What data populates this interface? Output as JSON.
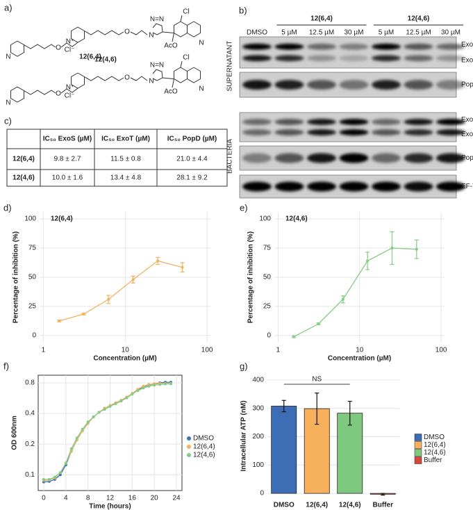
{
  "figure": {
    "a": {
      "label": "a)",
      "molecules": [
        {
          "name": "12(4,6)",
          "atoms": [
            "N",
            "N⁺",
            "Cl⁻",
            "O",
            "O",
            "N",
            "N=N",
            "Cl",
            "AcO",
            "N"
          ]
        },
        {
          "name": "12(6,4)",
          "atoms": [
            "N",
            "N⁺",
            "Cl⁻",
            "O",
            "O",
            "N",
            "N=N",
            "Cl",
            "AcO",
            "N"
          ]
        }
      ]
    },
    "b": {
      "label": "b)",
      "groups": [
        "12(6,4)",
        "12(4,6)"
      ],
      "lanes": [
        "DMSO",
        "5 µM",
        "12.5 µM",
        "30 µM",
        "5 µM",
        "12.5 µM",
        "30 µM"
      ],
      "fractions": [
        "SUPERNATANT",
        "BACTERIA"
      ],
      "bands": [
        [
          "ExoT",
          "ExoS"
        ],
        [
          "PopD"
        ],
        [
          "ExoT",
          "ExoS"
        ],
        [
          "PopD"
        ],
        [
          "EF-Tu"
        ]
      ]
    },
    "c": {
      "label": "c)",
      "table": {
        "header": [
          "IC₅₀ ExoS (µM)",
          "IC₅₀ ExoT (µM)",
          "IC₅₀ PopD (µM)"
        ],
        "rows": [
          {
            "name": "12(6,4)",
            "cells": [
              "9.8 ± 2.7",
              "11.5 ± 0.8",
              "21.0 ± 4.4"
            ]
          },
          {
            "name": "12(4,6)",
            "cells": [
              "10.0 ± 1.6",
              "13.4 ± 4.8",
              "28.1 ± 9.2"
            ]
          }
        ]
      }
    }
  },
  "chart_data": [
    {
      "type": "line",
      "label": "d)",
      "title": "12(6,4)",
      "xlabel": "Concentration (µM)",
      "ylabel": "Percentage of inhibition (%)",
      "xscale": "log",
      "x": [
        1.5625,
        3.125,
        6.25,
        12.5,
        25,
        50
      ],
      "series": [
        {
          "color": "#f2b25e",
          "values": [
            12.5,
            18.5,
            31,
            48,
            64,
            58.5
          ],
          "errors": [
            0.8,
            0.8,
            3.5,
            3,
            3,
            4
          ]
        }
      ],
      "xlim": [
        0.9,
        110
      ],
      "xticks": [
        1,
        10,
        100
      ],
      "ylim": [
        -6,
        106
      ],
      "yticks": [
        0,
        25,
        50,
        75,
        100
      ],
      "grid": true
    },
    {
      "type": "line",
      "label": "e)",
      "title": "12(4,6)",
      "xlabel": "Concentration (µM)",
      "ylabel": "Percentage of inhibition (%)",
      "xscale": "log",
      "x": [
        1.5625,
        3.125,
        6.25,
        12.5,
        25,
        50
      ],
      "series": [
        {
          "color": "#84cc84",
          "values": [
            -1,
            10,
            31,
            64,
            75,
            74
          ],
          "errors": [
            0.8,
            0.8,
            3,
            7.5,
            14,
            8
          ]
        }
      ],
      "xlim": [
        0.9,
        110
      ],
      "xticks": [
        1,
        10,
        100
      ],
      "ylim": [
        -6,
        106
      ],
      "yticks": [
        0,
        25,
        50,
        75,
        100
      ],
      "grid": true
    },
    {
      "type": "line",
      "label": "f)",
      "xlabel": "Time (hours)",
      "ylabel": "OD 600nm",
      "yscale": "log",
      "frame": true,
      "x": [
        0,
        1,
        2,
        3,
        4,
        5,
        6,
        7,
        8,
        9,
        10,
        11,
        12,
        13,
        14,
        15,
        16,
        17,
        18,
        19,
        20,
        21,
        22,
        23
      ],
      "series": [
        {
          "name": "DMSO",
          "color": "#3f6fb6",
          "values": [
            0.085,
            0.086,
            0.09,
            0.1,
            0.125,
            0.17,
            0.22,
            0.27,
            0.32,
            0.37,
            0.41,
            0.44,
            0.47,
            0.5,
            0.53,
            0.57,
            0.62,
            0.68,
            0.73,
            0.76,
            0.78,
            0.8,
            0.81,
            0.81
          ]
        },
        {
          "name": "12(6,4)",
          "color": "#f2b25e",
          "values": [
            0.088,
            0.089,
            0.093,
            0.105,
            0.13,
            0.17,
            0.22,
            0.27,
            0.32,
            0.37,
            0.41,
            0.45,
            0.48,
            0.51,
            0.54,
            0.58,
            0.63,
            0.69,
            0.74,
            0.77,
            0.78,
            0.79,
            0.79,
            0.79
          ]
        },
        {
          "name": "12(4,6)",
          "color": "#84cc84",
          "values": [
            0.09,
            0.09,
            0.095,
            0.105,
            0.13,
            0.18,
            0.23,
            0.28,
            0.33,
            0.37,
            0.41,
            0.44,
            0.47,
            0.5,
            0.53,
            0.57,
            0.62,
            0.67,
            0.71,
            0.74,
            0.76,
            0.77,
            0.78,
            0.78
          ]
        }
      ],
      "xlim": [
        -1,
        25
      ],
      "xticks": [
        0,
        4,
        8,
        12,
        16,
        20,
        24
      ],
      "ylim": [
        0.07,
        0.95
      ],
      "yticks": [
        0.1,
        0.2,
        0.4,
        0.8
      ],
      "grid": true
    },
    {
      "type": "bar",
      "label": "g)",
      "ylabel": "Intracellular ATP (nM)",
      "annotation": "NS",
      "categories": [
        "DMSO",
        "12(6,4)",
        "12(4,6)",
        "Buffer"
      ],
      "values": [
        308,
        299,
        283,
        -3
      ],
      "errors": [
        20,
        55,
        42,
        3
      ],
      "colors": [
        "#3d6db5",
        "#f7b15c",
        "#7fc97f",
        "#d9473a"
      ],
      "ylim": [
        -12,
        417
      ],
      "yticks": [
        0,
        100,
        200,
        300,
        400
      ],
      "grid": true
    }
  ]
}
